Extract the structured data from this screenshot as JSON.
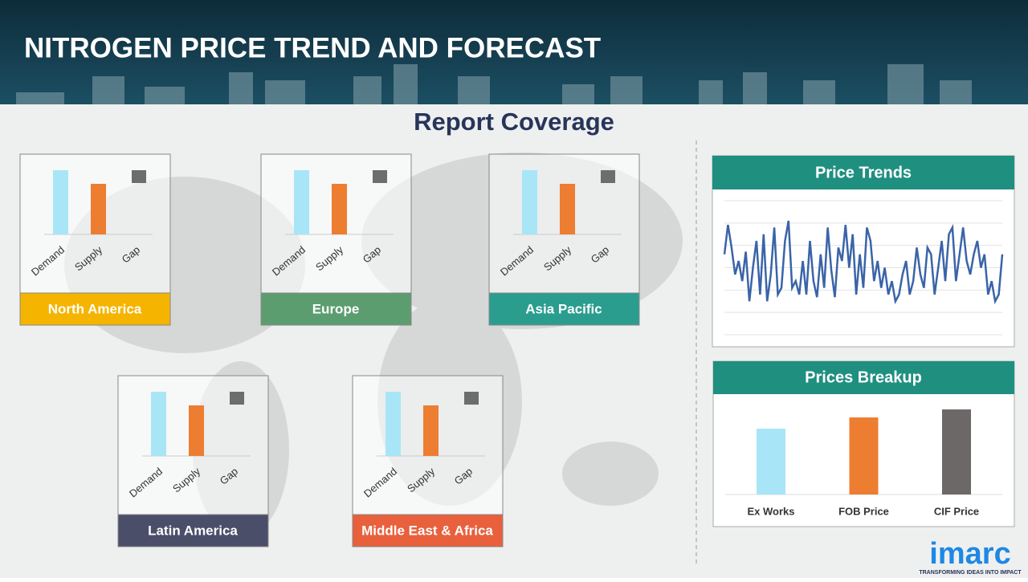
{
  "header": {
    "title": "NITROGEN PRICE TREND AND FORECAST"
  },
  "coverage_title": "Report Coverage",
  "regions": [
    {
      "name": "North America",
      "color": "#f5b400",
      "chart": {
        "type": "bar",
        "categories": [
          "Demand",
          "Supply",
          "Gap"
        ],
        "values": [
          80,
          63,
          null
        ],
        "colors": [
          "#a8e6f7",
          "#ed7d31",
          "#6d6d6d"
        ],
        "ylim": [
          0,
          100
        ]
      }
    },
    {
      "name": "Europe",
      "color": "#5c9d70",
      "chart": {
        "type": "bar",
        "categories": [
          "Demand",
          "Supply",
          "Gap"
        ],
        "values": [
          80,
          63,
          null
        ],
        "colors": [
          "#a8e6f7",
          "#ed7d31",
          "#6d6d6d"
        ],
        "ylim": [
          0,
          100
        ]
      }
    },
    {
      "name": "Asia Pacific",
      "color": "#2a9d8f",
      "chart": {
        "type": "bar",
        "categories": [
          "Demand",
          "Supply",
          "Gap"
        ],
        "values": [
          80,
          63,
          null
        ],
        "colors": [
          "#a8e6f7",
          "#ed7d31",
          "#6d6d6d"
        ],
        "ylim": [
          0,
          100
        ]
      }
    },
    {
      "name": "Latin America",
      "color": "#4a4e69",
      "chart": {
        "type": "bar",
        "categories": [
          "Demand",
          "Supply",
          "Gap"
        ],
        "values": [
          80,
          63,
          null
        ],
        "colors": [
          "#a8e6f7",
          "#ed7d31",
          "#6d6d6d"
        ],
        "ylim": [
          0,
          100
        ]
      }
    },
    {
      "name": "Middle East & Africa",
      "color": "#e8603c",
      "chart": {
        "type": "bar",
        "categories": [
          "Demand",
          "Supply",
          "Gap"
        ],
        "values": [
          80,
          63,
          null
        ],
        "colors": [
          "#a8e6f7",
          "#ed7d31",
          "#6d6d6d"
        ],
        "ylim": [
          0,
          100
        ]
      }
    }
  ],
  "price_trends": {
    "type": "line",
    "title": "Price Trends",
    "color": "#3a64a8",
    "ylim": [
      0,
      100
    ],
    "grid": true,
    "values": [
      60,
      82,
      65,
      45,
      55,
      40,
      62,
      25,
      50,
      70,
      30,
      75,
      25,
      45,
      80,
      30,
      35,
      70,
      85,
      35,
      40,
      30,
      55,
      30,
      70,
      40,
      28,
      60,
      35,
      80,
      48,
      28,
      65,
      55,
      82,
      50,
      75,
      30,
      60,
      35,
      80,
      70,
      40,
      55,
      35,
      50,
      30,
      40,
      25,
      30,
      45,
      55,
      30,
      40,
      65,
      45,
      35,
      65,
      60,
      30,
      50,
      70,
      40,
      75,
      80,
      40,
      60,
      80,
      55,
      45,
      60,
      70,
      50,
      60,
      30,
      40,
      25,
      30,
      60
    ]
  },
  "prices_breakup": {
    "type": "bar",
    "title": "Prices Breakup",
    "categories": [
      "Ex Works",
      "FOB Price",
      "CIF Price"
    ],
    "values": [
      82,
      96,
      106
    ],
    "colors": [
      "#a8e6f7",
      "#ed7d31",
      "#6d6868"
    ],
    "ylim": [
      0,
      120
    ]
  },
  "logo": {
    "name": "imarc",
    "tagline": "TRANSFORMING IDEAS INTO IMPACT"
  }
}
